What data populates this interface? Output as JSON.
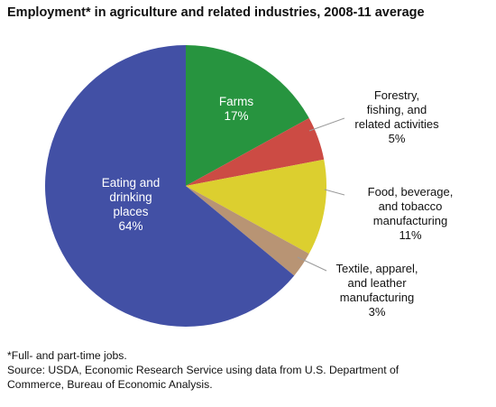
{
  "chart_data": {
    "type": "pie",
    "title": "Employment* in agriculture and related industries, 2008-11 average",
    "slices": [
      {
        "label": "Farms",
        "value": 17,
        "value_label": "17%",
        "color": "#27943f"
      },
      {
        "label": "Forestry, fishing, and related activities",
        "value": 5,
        "value_label": "5%",
        "color": "#cc4b44"
      },
      {
        "label": "Food, beverage, and tobacco manufacturing",
        "value": 11,
        "value_label": "11%",
        "color": "#dccf2f"
      },
      {
        "label": "Textile, apparel, and leather manufacturing",
        "value": 3,
        "value_label": "3%",
        "color": "#b89474"
      },
      {
        "label": "Eating and drinking places",
        "value": 64,
        "value_label": "64%",
        "color": "#4250a5"
      }
    ],
    "label_lines": [
      [
        "Farms",
        "17%"
      ],
      [
        "Forestry,",
        "fishing, and",
        "related activities",
        "5%"
      ],
      [
        "Food, beverage,",
        "and tobacco",
        "manufacturing",
        "11%"
      ],
      [
        "Textile, apparel,",
        "and leather",
        "manufacturing",
        "3%"
      ],
      [
        "Eating and",
        "drinking",
        "places",
        "64%"
      ]
    ],
    "start_angle_deg": 0,
    "direction": "clockwise"
  },
  "footnotes": {
    "note": "*Full- and part-time jobs.",
    "source_line1": "Source: USDA, Economic Research Service using data from U.S. Department of",
    "source_line2": "Commerce, Bureau of Economic Analysis."
  }
}
